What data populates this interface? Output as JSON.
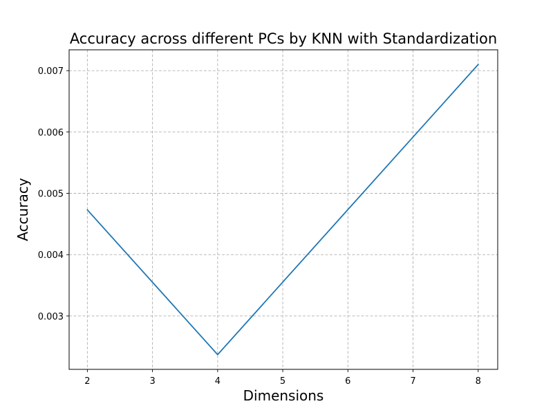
{
  "chart_data": {
    "type": "line",
    "title": "Accuracy across different PCs by KNN with Standardization",
    "xlabel": "Dimensions",
    "ylabel": "Accuracy",
    "x": [
      2,
      4,
      8
    ],
    "series": [
      {
        "values": [
          0.00473,
          0.00237,
          0.0071
        ],
        "color": "#1f77b4"
      }
    ],
    "xlim": [
      1.72,
      8.3
    ],
    "ylim": [
      0.00213,
      0.00734
    ],
    "xticks": [
      2,
      3,
      4,
      5,
      6,
      7,
      8
    ],
    "xtick_labels": [
      "2",
      "3",
      "4",
      "5",
      "6",
      "7",
      "8"
    ],
    "yticks": [
      0.003,
      0.004,
      0.005,
      0.006,
      0.007
    ],
    "ytick_labels": [
      "0.003",
      "0.004",
      "0.005",
      "0.006",
      "0.007"
    ],
    "grid": true,
    "grid_style": "dashed",
    "legend": false
  }
}
